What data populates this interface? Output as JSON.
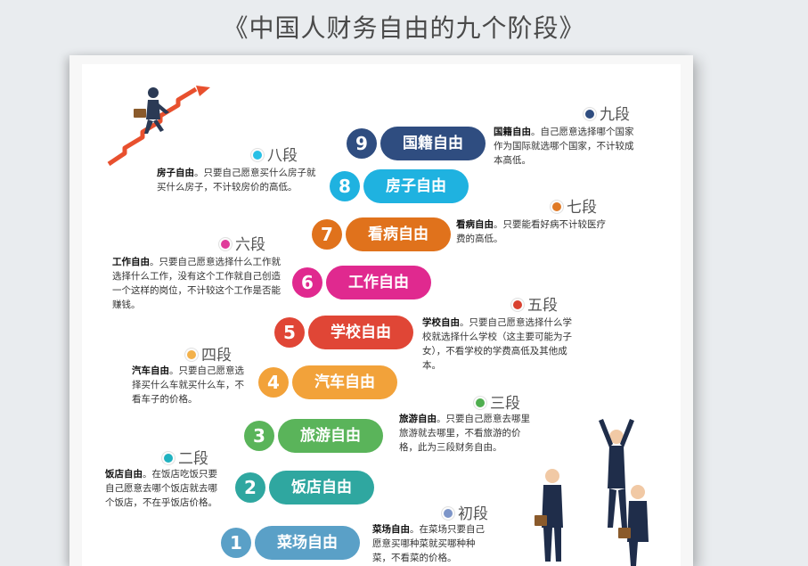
{
  "title": "《中国人财务自由的九个阶段》",
  "stages": [
    {
      "num": "1",
      "name": "菜场自由",
      "level": "初段",
      "color": "#5aa0c7",
      "dot": "#7d95c8",
      "desc_bold": "菜场自由",
      "desc": "。在菜场只要自己愿意买哪种菜就买哪种种菜，不看菜的价格。"
    },
    {
      "num": "2",
      "name": "饭店自由",
      "level": "二段",
      "color": "#2fa7a0",
      "dot": "#20b2c0",
      "desc_bold": "饭店自由",
      "desc": "。在饭店吃饭只要自己愿意去哪个饭店就去哪个饭店，不在乎饭店价格。"
    },
    {
      "num": "3",
      "name": "旅游自由",
      "level": "三段",
      "color": "#5ab45a",
      "dot": "#4fae4f",
      "desc_bold": "旅游自由",
      "desc": "。只要自己愿意去哪里旅游就去哪里，不看旅游的价格，此为三段财务自由。"
    },
    {
      "num": "4",
      "name": "汽车自由",
      "level": "四段",
      "color": "#f2a23a",
      "dot": "#f3b14a",
      "desc_bold": "汽车自由",
      "desc": "。只要自己愿意选择买什么车就买什么车，不看车子的价格。"
    },
    {
      "num": "5",
      "name": "学校自由",
      "level": "五段",
      "color": "#e04636",
      "dot": "#d9412f",
      "desc_bold": "学校自由",
      "desc": "。只要自己愿意选择什么学校就选择什么学校（这主要可能为子女），不看学校的学费高低及其他成本。"
    },
    {
      "num": "6",
      "name": "工作自由",
      "level": "六段",
      "color": "#e0298f",
      "dot": "#e03a9a",
      "desc_bold": "工作自由",
      "desc": "。只要自己愿意选择什么工作就选择什么工作，没有这个工作就自己创造一个这样的岗位，不计较这个工作是否能赚钱。"
    },
    {
      "num": "7",
      "name": "看病自由",
      "level": "七段",
      "color": "#e0721c",
      "dot": "#e07a26",
      "desc_bold": "看病自由",
      "desc": "。只要能看好病不计较医疗费的高低。"
    },
    {
      "num": "8",
      "name": "房子自由",
      "level": "八段",
      "color": "#1fb2e0",
      "dot": "#28c0e6",
      "desc_bold": "房子自由",
      "desc": "。只要自己愿意买什么房子就买什么房子，不计较房价的高低。"
    },
    {
      "num": "9",
      "name": "国籍自由",
      "level": "九段",
      "color": "#2f4d80",
      "dot": "#2f4d80",
      "desc_bold": "国籍自由",
      "desc": "。自己愿意选择哪个国家作为国际就选哪个国家，不计较成本高低。"
    }
  ]
}
